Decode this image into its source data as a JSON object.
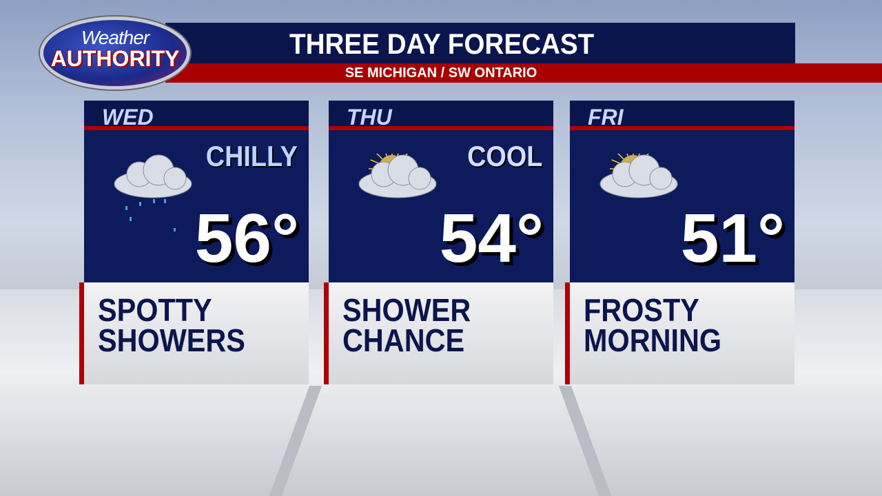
{
  "logo": {
    "line1": "Weather",
    "line2": "AUTHORITY"
  },
  "header": {
    "title": "THREE DAY FORECAST",
    "subtitle": "SE MICHIGAN / SW ONTARIO"
  },
  "days": [
    {
      "day": "WED",
      "adjective": "CHILLY",
      "temp": "56°",
      "desc1": "SPOTTY",
      "desc2": "SHOWERS",
      "icon": "rain-cloud-icon",
      "adj_color": "#bcd4ff"
    },
    {
      "day": "THU",
      "adjective": "COOL",
      "temp": "54°",
      "desc1": "SHOWER",
      "desc2": "CHANCE",
      "icon": "partly-sunny-cloud-icon",
      "adj_color": "#d6dcff"
    },
    {
      "day": "FRI",
      "adjective": "",
      "temp": "51°",
      "desc1": "FROSTY",
      "desc2": "MORNING",
      "icon": "partly-sunny-cloud-icon",
      "adj_color": "#ffffff"
    }
  ]
}
